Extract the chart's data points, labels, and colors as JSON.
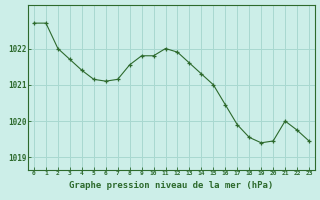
{
  "x": [
    0,
    1,
    2,
    3,
    4,
    5,
    6,
    7,
    8,
    9,
    10,
    11,
    12,
    13,
    14,
    15,
    16,
    17,
    18,
    19,
    20,
    21,
    22,
    23
  ],
  "y": [
    1022.7,
    1022.7,
    1022.0,
    1021.7,
    1021.4,
    1021.15,
    1021.1,
    1021.15,
    1021.55,
    1021.8,
    1021.8,
    1022.0,
    1021.9,
    1021.6,
    1021.3,
    1021.0,
    1020.45,
    1019.9,
    1019.55,
    1019.4,
    1019.45,
    1020.0,
    1019.75,
    1019.45
  ],
  "line_color": "#2d6a2d",
  "marker_color": "#2d6a2d",
  "bg_color": "#cceee8",
  "grid_color": "#a8d8d0",
  "border_color": "#2d6a2d",
  "xlabel": "Graphe pression niveau de la mer (hPa)",
  "xlabel_color": "#2d6a2d",
  "tick_color": "#2d6a2d",
  "yticks": [
    1019,
    1020,
    1021,
    1022
  ],
  "xticks": [
    0,
    1,
    2,
    3,
    4,
    5,
    6,
    7,
    8,
    9,
    10,
    11,
    12,
    13,
    14,
    15,
    16,
    17,
    18,
    19,
    20,
    21,
    22,
    23
  ],
  "ylim": [
    1018.65,
    1023.2
  ],
  "xlim": [
    -0.5,
    23.5
  ]
}
